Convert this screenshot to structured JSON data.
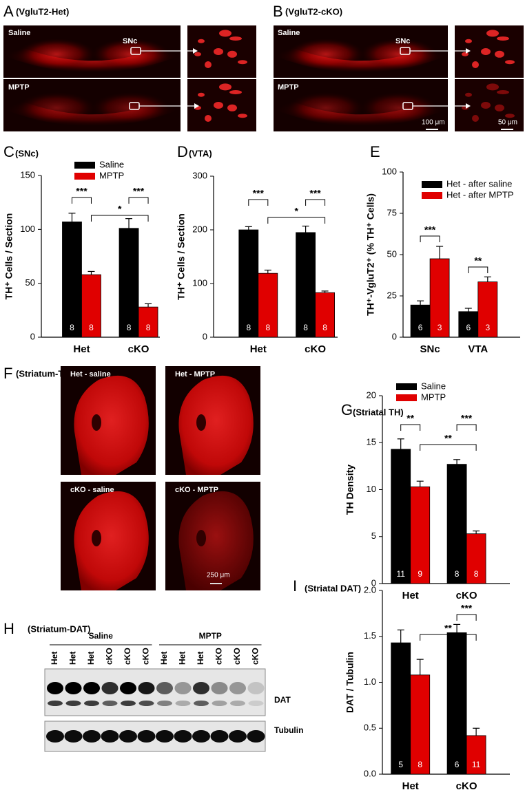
{
  "figure": {
    "panel_A": {
      "letter": "A",
      "title": "(VgluT2-Het)",
      "saline": "Saline",
      "mptp": "MPTP",
      "region": "SNc"
    },
    "panel_B": {
      "letter": "B",
      "title": "(VgluT2-cKO)",
      "saline": "Saline",
      "mptp": "MPTP",
      "region": "SNc",
      "scale_main": "100 μm",
      "scale_inset": "50 μm"
    },
    "panel_F": {
      "letter": "F",
      "title": "(Striatum-TH)",
      "images": [
        "Het - saline",
        "Het - MPTP",
        "cKO - saline",
        "cKO - MPTP"
      ],
      "scale": "250 μm"
    },
    "panel_H": {
      "letter": "H",
      "title": "(Striatum-DAT)",
      "groups": [
        "Saline",
        "MPTP"
      ],
      "lanes": [
        "Het",
        "Het",
        "Het",
        "cKO",
        "cKO",
        "cKO",
        "Het",
        "Het",
        "Het",
        "cKO",
        "cKO",
        "cKO"
      ],
      "bands": [
        "DAT",
        "Tubulin"
      ]
    }
  },
  "chart_data": [
    {
      "type": "bar",
      "letter": "C",
      "title": "(SNc)",
      "ylabel": "TH⁺ Cells / Section",
      "categories": [
        "Het",
        "cKO"
      ],
      "series": [
        {
          "name": "Saline",
          "color": "#000000",
          "values": [
            107,
            101
          ],
          "errors": [
            8,
            9
          ],
          "n": [
            8,
            8
          ]
        },
        {
          "name": "MPTP",
          "color": "#e00000",
          "values": [
            58,
            28
          ],
          "errors": [
            3,
            3
          ],
          "n": [
            8,
            8
          ]
        }
      ],
      "ylim": [
        0,
        150
      ],
      "yticks": [
        0,
        50,
        100,
        150
      ],
      "significance": [
        "***",
        "***",
        "*"
      ]
    },
    {
      "type": "bar",
      "letter": "D",
      "title": "(VTA)",
      "ylabel": "TH⁺ Cells / Section",
      "categories": [
        "Het",
        "cKO"
      ],
      "series": [
        {
          "name": "Saline",
          "color": "#000000",
          "values": [
            200,
            195
          ],
          "errors": [
            6,
            12
          ],
          "n": [
            8,
            8
          ]
        },
        {
          "name": "MPTP",
          "color": "#e00000",
          "values": [
            119,
            83
          ],
          "errors": [
            6,
            3
          ],
          "n": [
            8,
            8
          ]
        }
      ],
      "ylim": [
        0,
        300
      ],
      "yticks": [
        0,
        100,
        200,
        300
      ],
      "significance": [
        "***",
        "***",
        "*"
      ]
    },
    {
      "type": "bar",
      "letter": "E",
      "ylabel": "TH⁺-VgluT2⁺ (% TH⁺ Cells)",
      "categories": [
        "SNc",
        "VTA"
      ],
      "series": [
        {
          "name": "Het - after saline",
          "color": "#000000",
          "values": [
            19.5,
            15.5
          ],
          "errors": [
            2.5,
            2
          ],
          "n": [
            6,
            6
          ]
        },
        {
          "name": "Het - after MPTP",
          "color": "#e00000",
          "values": [
            47.5,
            33.5
          ],
          "errors": [
            7.5,
            3
          ],
          "n": [
            3,
            3
          ]
        }
      ],
      "ylim": [
        0,
        100
      ],
      "yticks": [
        0,
        25,
        50,
        75,
        100
      ],
      "significance": [
        "***",
        "**"
      ]
    },
    {
      "type": "bar",
      "letter": "G",
      "title": "(Striatal TH)",
      "ylabel": "TH Density",
      "categories": [
        "Het",
        "cKO"
      ],
      "series": [
        {
          "name": "Saline",
          "color": "#000000",
          "values": [
            14.3,
            12.7
          ],
          "errors": [
            1.1,
            0.5
          ],
          "n": [
            11,
            8
          ]
        },
        {
          "name": "MPTP",
          "color": "#e00000",
          "values": [
            10.3,
            5.3
          ],
          "errors": [
            0.6,
            0.3
          ],
          "n": [
            9,
            8
          ]
        }
      ],
      "ylim": [
        0,
        20
      ],
      "yticks": [
        0,
        5,
        10,
        15,
        20
      ],
      "significance": [
        "**",
        "***",
        "**"
      ]
    },
    {
      "type": "bar",
      "letter": "I",
      "title": "(Striatal DAT)",
      "ylabel": "DAT / Tubulin",
      "categories": [
        "Het",
        "cKO"
      ],
      "series": [
        {
          "color": "#000000",
          "values": [
            1.43,
            1.54
          ],
          "errors": [
            0.14,
            0.09
          ],
          "n": [
            5,
            6
          ]
        },
        {
          "color": "#e00000",
          "values": [
            1.08,
            0.42
          ],
          "errors": [
            0.17,
            0.08
          ],
          "n": [
            8,
            11
          ]
        }
      ],
      "ylim": [
        0,
        2
      ],
      "yticks": [
        {
          "value": 0,
          "label": "0.0"
        },
        0.5,
        {
          "value": 1,
          "label": "1.0"
        },
        1.5,
        {
          "value": 2,
          "label": "2.0"
        }
      ],
      "significance": [
        "***",
        "**"
      ]
    }
  ]
}
